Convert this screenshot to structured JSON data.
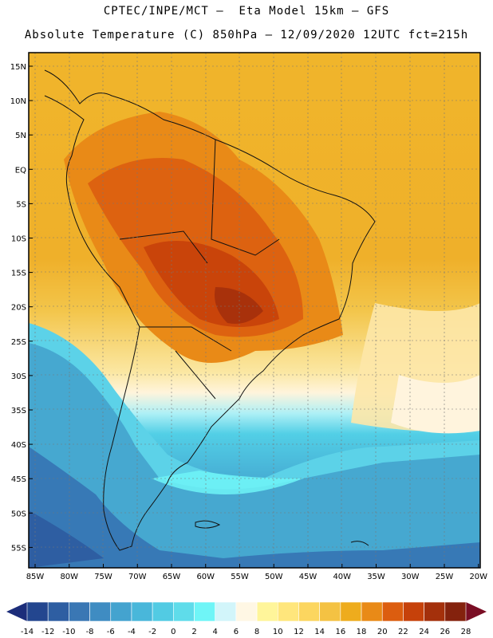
{
  "header": {
    "line1": "CPTEC/INPE/MCT –  Eta Model 15km – GFS",
    "line2": "Absolute Temperature (C) 850hPa – 12/09/2020 12UTC fct=215h"
  },
  "map": {
    "lat_labels": [
      "15N",
      "10N",
      "5N",
      "EQ",
      "5S",
      "10S",
      "15S",
      "20S",
      "25S",
      "30S",
      "35S",
      "40S",
      "45S",
      "50S",
      "55S"
    ],
    "lon_labels": [
      "85W",
      "80W",
      "75W",
      "70W",
      "65W",
      "60W",
      "55W",
      "50W",
      "45W",
      "40W",
      "35W",
      "30W",
      "25W",
      "20W"
    ]
  },
  "colorbar": {
    "tick_labels": [
      "-14",
      "-12",
      "-10",
      "-8",
      "-6",
      "-4",
      "-2",
      "0",
      "2",
      "4",
      "6",
      "8",
      "10",
      "12",
      "14",
      "16",
      "18",
      "20",
      "22",
      "24",
      "26",
      "28"
    ],
    "colors": [
      "#23468f",
      "#2e5ea2",
      "#3a77b4",
      "#3f8cc2",
      "#44a3cf",
      "#49b7da",
      "#52cbe3",
      "#5fdcea",
      "#6ff5f7",
      "#d2f5fa",
      "#fff7e4",
      "#fff59a",
      "#ffe67c",
      "#fcd65f",
      "#f4c243",
      "#eeac1d",
      "#e98a17",
      "#dc5d0f",
      "#c6410a",
      "#a4300b",
      "#84220d"
    ],
    "low_color": "#1c2d7a",
    "high_color": "#7a0e24"
  }
}
